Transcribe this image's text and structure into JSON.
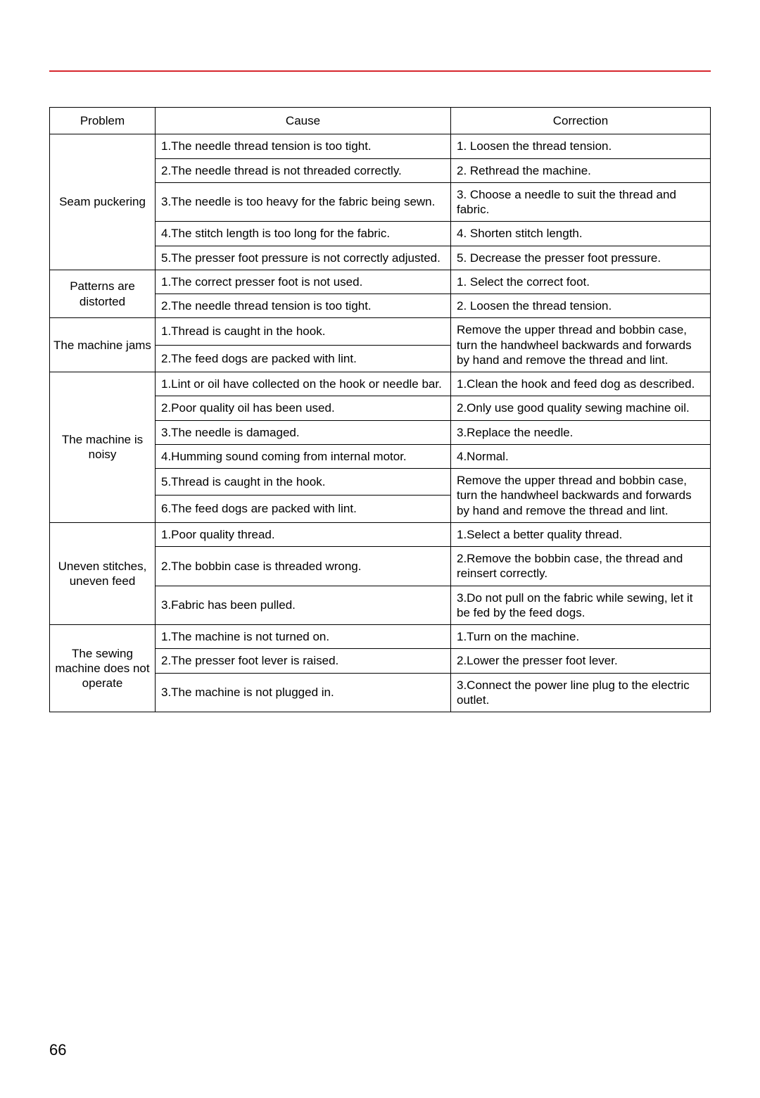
{
  "accent_color": "#d7262d",
  "page_number": "66",
  "table": {
    "columns": [
      "Problem",
      "Cause",
      "Correction"
    ],
    "groups": [
      {
        "problem": "Seam puckering",
        "rows": [
          {
            "cause": "1.The needle thread tension is too tight.",
            "correction": "1. Loosen the thread tension."
          },
          {
            "cause": "2.The needle thread is not threaded correctly.",
            "correction": "2. Rethread the machine."
          },
          {
            "cause": "3.The needle is too heavy for the fabric being sewn.",
            "correction": "3. Choose a needle to suit the thread and fabric."
          },
          {
            "cause": "4.The stitch length is too long for the fabric.",
            "correction": "4. Shorten stitch length."
          },
          {
            "cause": "5.The presser foot pressure is not correctly adjusted.",
            "correction": "5. Decrease the presser foot pressure."
          }
        ]
      },
      {
        "problem": "Patterns are distorted",
        "rows": [
          {
            "cause": "1.The correct presser foot is not used.",
            "correction": "1. Select the correct foot."
          },
          {
            "cause": "2.The needle thread tension is too tight.",
            "correction": "2. Loosen the thread tension."
          }
        ]
      },
      {
        "problem": "The machine jams",
        "rows": [
          {
            "cause": "1.Thread is caught in the hook.",
            "correction": ""
          },
          {
            "cause": "2.The feed dogs are packed with lint.",
            "correction": ""
          }
        ],
        "merged_correction": "Remove the upper thread and bobbin case, turn the handwheel backwards and forwards by hand and remove the thread and lint.",
        "merged_correction_span": 2
      },
      {
        "problem": "The machine is noisy",
        "rows": [
          {
            "cause": "1.Lint or oil have collected on the hook or needle bar.",
            "correction": "1.Clean the hook and feed dog as described."
          },
          {
            "cause": "2.Poor quality oil has been used.",
            "correction": "2.Only use good quality sewing machine oil."
          },
          {
            "cause": "3.The needle is damaged.",
            "correction": "3.Replace the needle."
          },
          {
            "cause": "4.Humming sound coming from internal motor.",
            "correction": "4.Normal."
          },
          {
            "cause": "5.Thread is caught in the hook.",
            "correction": ""
          },
          {
            "cause": "6.The feed dogs are packed with lint.",
            "correction": ""
          }
        ],
        "tail_merged_correction": "Remove the upper thread and bobbin case, turn the handwheel backwards and forwards by hand and remove the thread and lint.",
        "tail_merged_start_index": 4,
        "tail_merged_span": 2
      },
      {
        "problem": "Uneven stitches, uneven feed",
        "rows": [
          {
            "cause": "1.Poor quality thread.",
            "correction": "1.Select a better quality thread."
          },
          {
            "cause": "2.The bobbin case is threaded wrong.",
            "correction": "2.Remove the bobbin case, the thread and reinsert correctly."
          },
          {
            "cause": "3.Fabric has been pulled.",
            "correction": "3.Do not pull on the fabric while sewing, let it be fed by the feed dogs."
          }
        ]
      },
      {
        "problem": "The sewing machine does not operate",
        "rows": [
          {
            "cause": "1.The machine is not turned on.",
            "correction": "1.Turn on the machine."
          },
          {
            "cause": "2.The presser foot lever is raised.",
            "correction": "2.Lower the presser foot lever."
          },
          {
            "cause": "3.The machine is not plugged in.",
            "correction": "3.Connect the power line plug to the electric outlet."
          }
        ]
      }
    ]
  }
}
